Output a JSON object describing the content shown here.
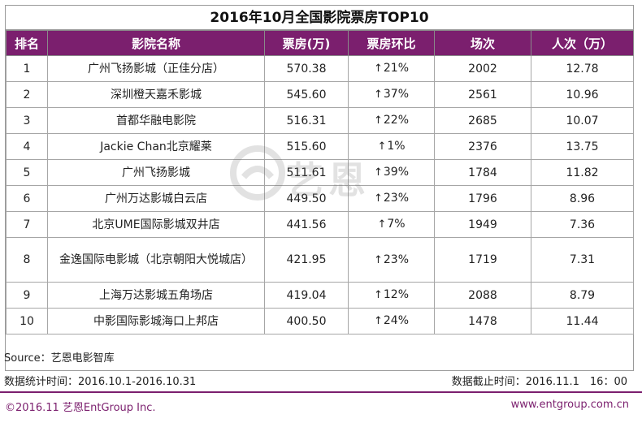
{
  "title": "2016年10月全国影院票房TOP10",
  "headers": [
    "排名",
    "影院名称",
    "票房(万)",
    "票房环比",
    "场次",
    "人次（万）"
  ],
  "rows": [
    {
      "rank": "1",
      "name": "广州飞扬影城（正佳分店）",
      "boxoffice": "570.38",
      "change": "21%",
      "shows": "2002",
      "admissions": "12.78"
    },
    {
      "rank": "2",
      "name": "深圳橙天嘉禾影城",
      "boxoffice": "545.60",
      "change": "37%",
      "shows": "2561",
      "admissions": "10.96"
    },
    {
      "rank": "3",
      "name": "首都华融电影院",
      "boxoffice": "516.31",
      "change": "22%",
      "shows": "2685",
      "admissions": "10.07"
    },
    {
      "rank": "4",
      "name": "Jackie Chan北京耀莱",
      "boxoffice": "515.60",
      "change": "1%",
      "shows": "2376",
      "admissions": "13.75"
    },
    {
      "rank": "5",
      "name": "广州飞扬影城",
      "boxoffice": "511.61",
      "change": "39%",
      "shows": "1784",
      "admissions": "11.82"
    },
    {
      "rank": "6",
      "name": "广州万达影城白云店",
      "boxoffice": "449.50",
      "change": "23%",
      "shows": "1796",
      "admissions": "8.96"
    },
    {
      "rank": "7",
      "name": "北京UME国际影城双井店",
      "boxoffice": "441.56",
      "change": "7%",
      "shows": "1949",
      "admissions": "7.36"
    },
    {
      "rank": "8",
      "name": "金逸国际电影城（北京朝阳大悦城店）",
      "boxoffice": "421.95",
      "change": "23%",
      "shows": "1719",
      "admissions": "7.31"
    },
    {
      "rank": "9",
      "name": "上海万达影城五角场店",
      "boxoffice": "419.04",
      "change": "12%",
      "shows": "2088",
      "admissions": "8.79"
    },
    {
      "rank": "10",
      "name": "中影国际影城海口上邦店",
      "boxoffice": "400.50",
      "change": "24%",
      "shows": "1478",
      "admissions": "11.44"
    }
  ],
  "change_arrow": "↑",
  "source": "Source：艺恩电影智库",
  "stat_period": "数据统计时间：2016.10.1-2016.10.31",
  "cutoff_time": "数据截止时间：2016.11.1　16：00",
  "copyright": "©2016.11 艺恩EntGroup Inc.",
  "website": "www.entgroup.com.cn",
  "watermark": "艺恩",
  "colors": {
    "header_bg": "#7b1f6e",
    "up": "#e02020",
    "brand": "#7b1f6e"
  }
}
